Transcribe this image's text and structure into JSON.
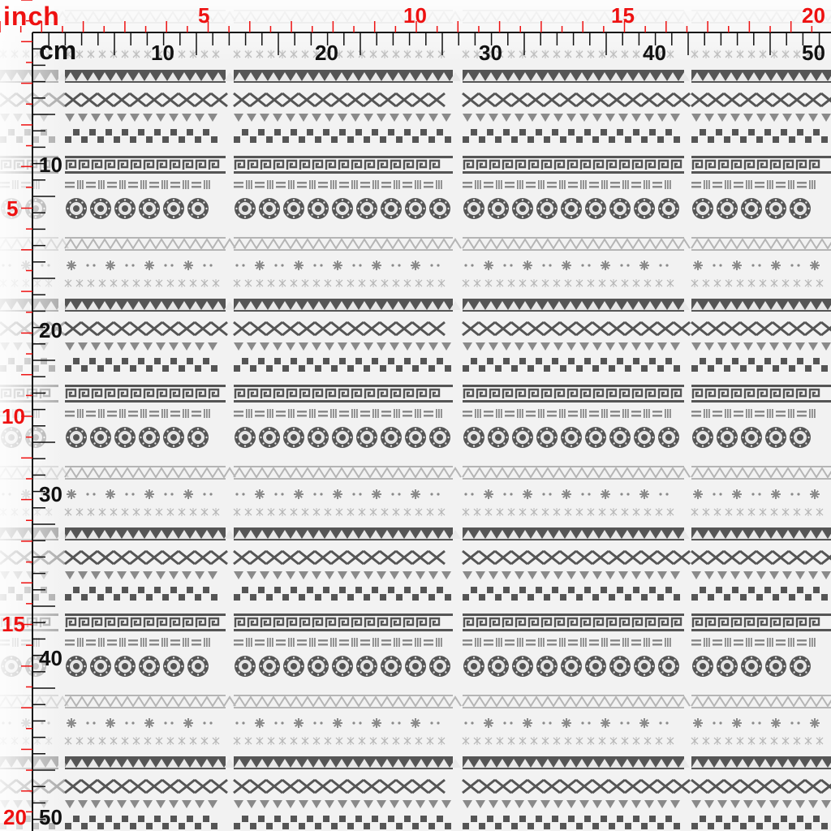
{
  "ruler": {
    "inch_unit": "inch",
    "cm_unit": "cm",
    "inch_top_labels": [
      "5",
      "10",
      "15",
      "20"
    ],
    "cm_top_labels": [
      "10",
      "20",
      "30",
      "40",
      "50"
    ],
    "inch_left_labels": [
      "5",
      "10",
      "15",
      "20"
    ],
    "cm_left_labels": [
      "10",
      "20",
      "30",
      "40",
      "50"
    ]
  },
  "colors": {
    "inch_ruler": "#ee1111",
    "cm_ruler": "#111111",
    "pattern_dark": "#555555",
    "pattern_mid": "#8a8a8a",
    "pattern_light": "#b5b5b5",
    "background": "#f2f2f2"
  },
  "pattern": {
    "name_icons": [
      "triangle-band-icon",
      "chevron-band-icon",
      "small-triangle-row-icon",
      "checker-row-icon",
      "greek-key-band-icon",
      "dash-pattern-row-icon",
      "medallion-row-icon",
      "zigzag-light-band-icon",
      "star-row-icon",
      "snowflake-row-icon"
    ]
  }
}
